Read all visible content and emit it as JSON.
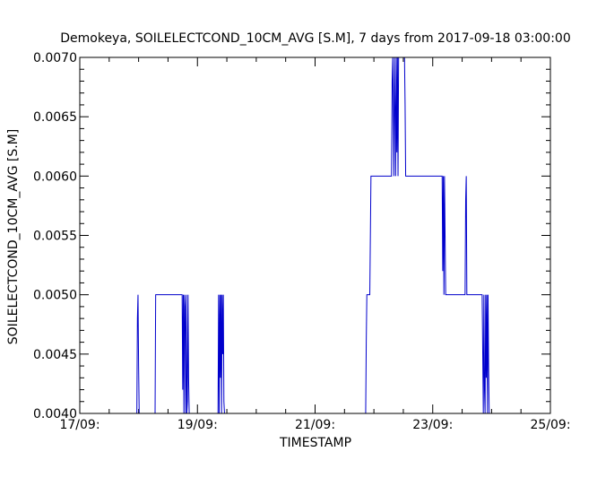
{
  "chart_data": {
    "type": "line",
    "title": "Demokeya, SOILELECTCOND_10CM_AVG [S.M], 7 days from  2017-09-18 03:00:00",
    "xlabel": "TIMESTAMP",
    "ylabel": "SOILELECTCOND_10CM_AVG [S.M]",
    "xlim_days": [
      0,
      8
    ],
    "ylim": [
      0.004,
      0.007
    ],
    "x_ticks": [
      {
        "pos": 0,
        "label": "17/09:"
      },
      {
        "pos": 2,
        "label": "19/09:"
      },
      {
        "pos": 4,
        "label": "21/09:"
      },
      {
        "pos": 6,
        "label": "23/09:"
      },
      {
        "pos": 8,
        "label": "25/09:"
      }
    ],
    "y_ticks": [
      {
        "value": 0.004,
        "label": "0.0040"
      },
      {
        "value": 0.0045,
        "label": "0.0045"
      },
      {
        "value": 0.005,
        "label": "0.0050"
      },
      {
        "value": 0.0055,
        "label": "0.0055"
      },
      {
        "value": 0.006,
        "label": "0.0060"
      },
      {
        "value": 0.0065,
        "label": "0.0065"
      },
      {
        "value": 0.007,
        "label": "0.0070"
      }
    ],
    "x_minor_per_major": 4,
    "y_minor_per_major": 5,
    "grid": false,
    "series": [
      {
        "color": "#0000cc",
        "x": [
          0.97,
          0.98,
          0.99,
          1.0,
          1.01,
          1.28,
          1.29,
          1.3,
          1.3,
          1.31,
          1.73,
          1.74,
          1.75,
          1.76,
          1.77,
          1.78,
          1.79,
          1.8,
          1.81,
          1.82,
          1.83,
          1.84,
          1.85,
          1.86,
          2.35,
          2.36,
          2.37,
          2.38,
          2.39,
          2.4,
          2.41,
          2.42,
          2.43,
          2.44,
          2.45,
          2.46,
          4.86,
          4.87,
          4.88,
          4.9,
          4.93,
          4.94,
          4.95,
          4.96,
          5.3,
          5.31,
          5.32,
          5.34,
          5.35,
          5.36,
          5.37,
          5.38,
          5.39,
          5.4,
          5.41,
          5.42,
          5.52,
          5.53,
          5.54,
          5.55,
          6.15,
          6.16,
          6.17,
          6.18,
          6.19,
          6.2,
          6.21,
          6.22,
          6.23,
          6.55,
          6.56,
          6.57,
          6.58,
          6.84,
          6.85,
          6.86,
          6.87,
          6.88,
          6.89,
          6.9,
          6.91,
          6.92,
          6.93,
          6.94,
          6.95,
          6.96,
          6.97
        ],
        "y": [
          0.004,
          0.0048,
          0.005,
          0.0044,
          0.004,
          0.004,
          0.005,
          0.005,
          0.005,
          0.005,
          0.005,
          0.005,
          0.0042,
          0.005,
          0.004,
          0.005,
          0.0049,
          0.004,
          0.005,
          0.004,
          0.0041,
          0.005,
          0.0043,
          0.004,
          0.004,
          0.005,
          0.004,
          0.005,
          0.0043,
          0.005,
          0.004,
          0.005,
          0.0045,
          0.005,
          0.0041,
          0.004,
          0.004,
          0.0046,
          0.005,
          0.005,
          0.005,
          0.0055,
          0.006,
          0.006,
          0.006,
          0.0068,
          0.007,
          0.006,
          0.007,
          0.0066,
          0.006,
          0.007,
          0.0062,
          0.007,
          0.006,
          0.007,
          0.007,
          0.0066,
          0.006,
          0.006,
          0.006,
          0.006,
          0.0052,
          0.006,
          0.005,
          0.006,
          0.0055,
          0.005,
          0.005,
          0.005,
          0.0058,
          0.006,
          0.005,
          0.005,
          0.0045,
          0.004,
          0.005,
          0.0042,
          0.004,
          0.005,
          0.0043,
          0.005,
          0.004,
          0.005,
          0.0044,
          0.004,
          0.004
        ]
      }
    ]
  }
}
